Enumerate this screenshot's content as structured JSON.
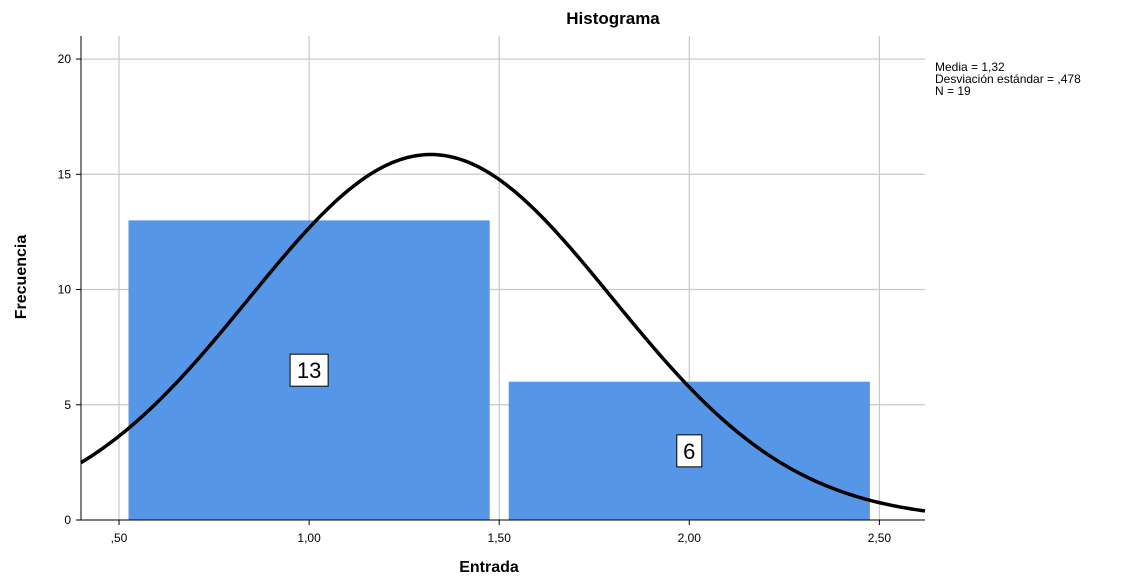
{
  "chart_data": {
    "type": "bar",
    "title": "Histograma",
    "xlabel": "Entrada",
    "ylabel": "Frecuencia",
    "xlim": [
      0.4,
      2.62
    ],
    "ylim": [
      0,
      21
    ],
    "x_ticks": [
      0.5,
      1.0,
      1.5,
      2.0,
      2.5
    ],
    "x_tick_labels": [
      ",50",
      "1,00",
      "1,50",
      "2,00",
      "2,50"
    ],
    "y_ticks": [
      0,
      5,
      10,
      15,
      20
    ],
    "y_tick_labels": [
      "0",
      "5",
      "10",
      "15",
      "20"
    ],
    "grid": true,
    "bar_color": "#5596e6",
    "bins": [
      {
        "x0": 0.525,
        "x1": 1.475,
        "value": 13,
        "label": "13"
      },
      {
        "x0": 1.525,
        "x1": 2.475,
        "value": 6,
        "label": "6"
      }
    ],
    "normal_curve": {
      "mean": 1.32,
      "sd": 0.478,
      "n": 19,
      "bin_width": 1.0
    },
    "stats": [
      "Media = 1,32",
      "Desviación estándar = ,478",
      "N = 19"
    ],
    "stats_placement": "top-right"
  }
}
